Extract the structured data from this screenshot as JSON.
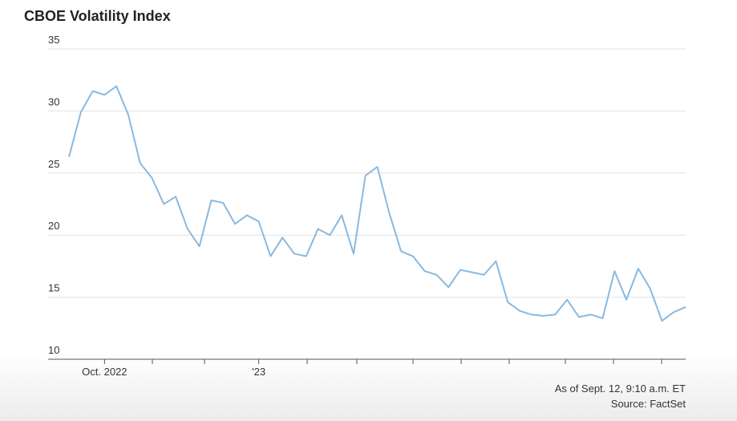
{
  "chart_data": {
    "type": "line",
    "title": "CBOE Volatility Index",
    "categories": [
      null,
      null,
      null,
      "Oct. 2022",
      null,
      null,
      null,
      null,
      null,
      null,
      null,
      null,
      null,
      null,
      null,
      null,
      "'23",
      null,
      null,
      null,
      null,
      null,
      null,
      null,
      null,
      null,
      null,
      null,
      null,
      null,
      null,
      null,
      null,
      null,
      null,
      null,
      null,
      null,
      null,
      null,
      null,
      null,
      null,
      null,
      null,
      null,
      null,
      null,
      null,
      null,
      null,
      null,
      null
    ],
    "series": [
      {
        "name": "CBOE Volatility Index",
        "color": "#8ab9de",
        "values": [
          26.3,
          29.9,
          31.6,
          31.3,
          32.0,
          29.7,
          25.8,
          24.6,
          22.5,
          23.1,
          20.5,
          19.1,
          22.8,
          22.6,
          20.9,
          21.6,
          21.1,
          18.3,
          19.8,
          18.5,
          18.3,
          20.5,
          20.0,
          21.6,
          18.5,
          24.8,
          25.5,
          21.8,
          18.7,
          18.3,
          17.1,
          16.8,
          15.8,
          17.2,
          17.0,
          16.8,
          17.9,
          14.6,
          13.9,
          13.6,
          13.5,
          13.6,
          14.8,
          13.4,
          13.6,
          13.3,
          17.1,
          14.8,
          17.3,
          15.7,
          13.1,
          13.8,
          14.2
        ]
      }
    ],
    "ylim": [
      10,
      35
    ],
    "yticks": [
      10,
      15,
      20,
      25,
      30,
      35
    ],
    "grid": true,
    "note": "As of Sept. 12, 9:10 a.m. ET",
    "source": "Source: FactSet"
  }
}
